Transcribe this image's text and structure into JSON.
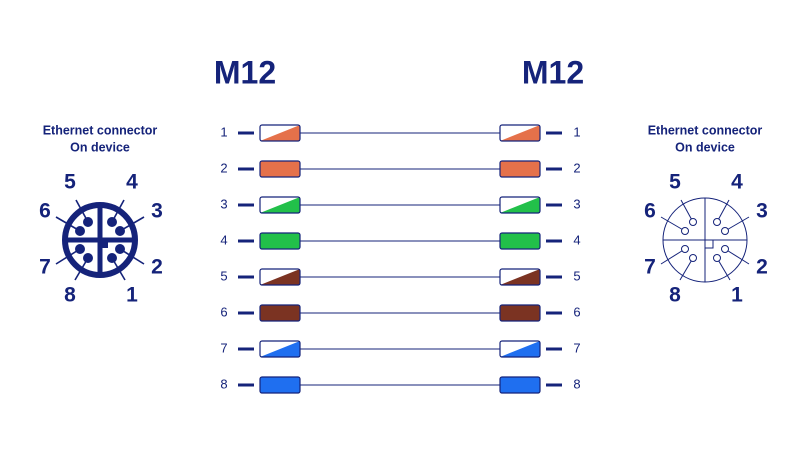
{
  "headers": {
    "left": "M12",
    "right": "M12"
  },
  "connectors": [
    {
      "title": "Ethernet connector",
      "subtitle": "On device",
      "pins": [
        "1",
        "2",
        "3",
        "4",
        "5",
        "6",
        "7",
        "8"
      ],
      "style": "filled"
    },
    {
      "title": "Ethernet connector",
      "subtitle": "On device",
      "pins": [
        "1",
        "2",
        "3",
        "4",
        "5",
        "6",
        "7",
        "8"
      ],
      "style": "outline"
    }
  ],
  "wires": [
    {
      "left_label": "1",
      "right_label": "1",
      "color": "#e5714a",
      "striped": true
    },
    {
      "left_label": "2",
      "right_label": "2",
      "color": "#e5714a",
      "striped": false
    },
    {
      "left_label": "3",
      "right_label": "3",
      "color": "#22c04a",
      "striped": true
    },
    {
      "left_label": "4",
      "right_label": "4",
      "color": "#22c04a",
      "striped": false
    },
    {
      "left_label": "5",
      "right_label": "5",
      "color": "#7b3322",
      "striped": true
    },
    {
      "left_label": "6",
      "right_label": "6",
      "color": "#7b3322",
      "striped": false
    },
    {
      "left_label": "7",
      "right_label": "7",
      "color": "#1f6ff0",
      "striped": true
    },
    {
      "left_label": "8",
      "right_label": "8",
      "color": "#1f6ff0",
      "striped": false
    }
  ]
}
